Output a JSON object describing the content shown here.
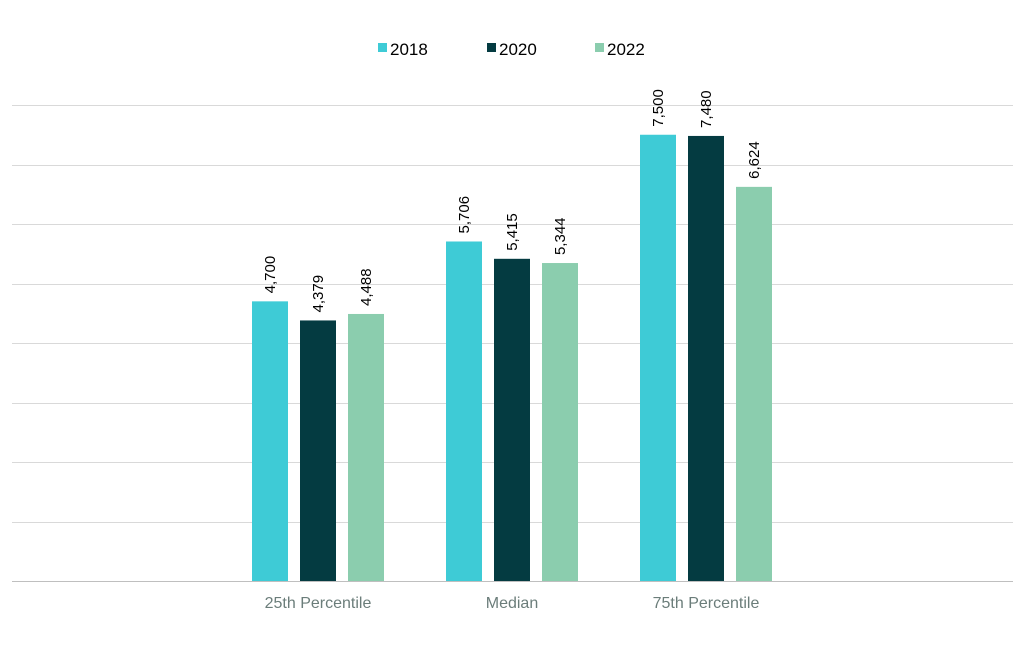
{
  "chart_data": {
    "type": "bar",
    "title": "",
    "xlabel": "",
    "ylabel": "",
    "categories": [
      "25th Percentile",
      "Median",
      "75th Percentile"
    ],
    "series": [
      {
        "name": "2018",
        "color": "#3ecbd6",
        "values": [
          4700,
          5706,
          7500
        ],
        "labels": [
          "4,700",
          "5,706",
          "7,500"
        ]
      },
      {
        "name": "2020",
        "color": "#043b41",
        "values": [
          4379,
          5415,
          7480
        ],
        "labels": [
          "4,379",
          "5,415",
          "7,480"
        ]
      },
      {
        "name": "2022",
        "color": "#8bcdae",
        "values": [
          4488,
          5344,
          6624
        ],
        "labels": [
          "4,488",
          "5,344",
          "6,624"
        ]
      }
    ],
    "ylim": [
      0,
      8000
    ],
    "ytick_step": 1000,
    "y_tick_labels_visible": false,
    "grid": true,
    "legend_position": "top-center",
    "data_labels_rotated": true
  }
}
